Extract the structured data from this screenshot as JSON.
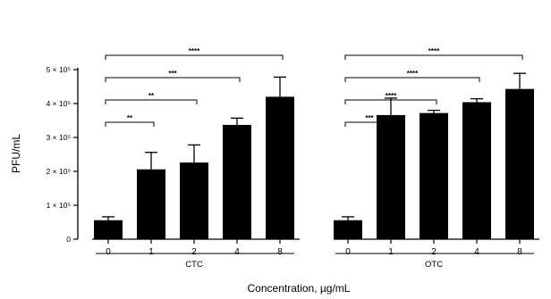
{
  "chart_data": {
    "type": "bar",
    "xlabel": "Concentration, µg/mL",
    "ylabel": "PFU/mL",
    "ylim": [
      0,
      500000
    ],
    "y_ticks": [
      {
        "value": 0,
        "label": "0"
      },
      {
        "value": 100000,
        "label": "1 × 10⁵"
      },
      {
        "value": 200000,
        "label": "2 × 10⁵"
      },
      {
        "value": 300000,
        "label": "3 × 10⁵"
      },
      {
        "value": 400000,
        "label": "4 × 10⁵"
      },
      {
        "value": 500000,
        "label": "5 × 10⁵"
      }
    ],
    "grid": false,
    "bar_color": "#000000",
    "groups": [
      {
        "name": "CTC",
        "categories": [
          "0",
          "1",
          "2",
          "4",
          "8"
        ],
        "values": [
          56000,
          206000,
          226000,
          337000,
          420000
        ],
        "errors": [
          10000,
          50000,
          52000,
          20000,
          58000
        ],
        "significance": [
          {
            "from": 0,
            "to": 1,
            "label": "**"
          },
          {
            "from": 0,
            "to": 2,
            "label": "**"
          },
          {
            "from": 0,
            "to": 3,
            "label": "***"
          },
          {
            "from": 0,
            "to": 4,
            "label": "****"
          }
        ]
      },
      {
        "name": "OTC",
        "categories": [
          "0",
          "1",
          "2",
          "4",
          "8"
        ],
        "values": [
          56000,
          366000,
          372000,
          404000,
          443000
        ],
        "errors": [
          10000,
          50000,
          8000,
          10000,
          46000
        ],
        "significance": [
          {
            "from": 0,
            "to": 1,
            "label": "***"
          },
          {
            "from": 0,
            "to": 2,
            "label": "****"
          },
          {
            "from": 0,
            "to": 3,
            "label": "****"
          },
          {
            "from": 0,
            "to": 4,
            "label": "****"
          }
        ]
      }
    ]
  }
}
